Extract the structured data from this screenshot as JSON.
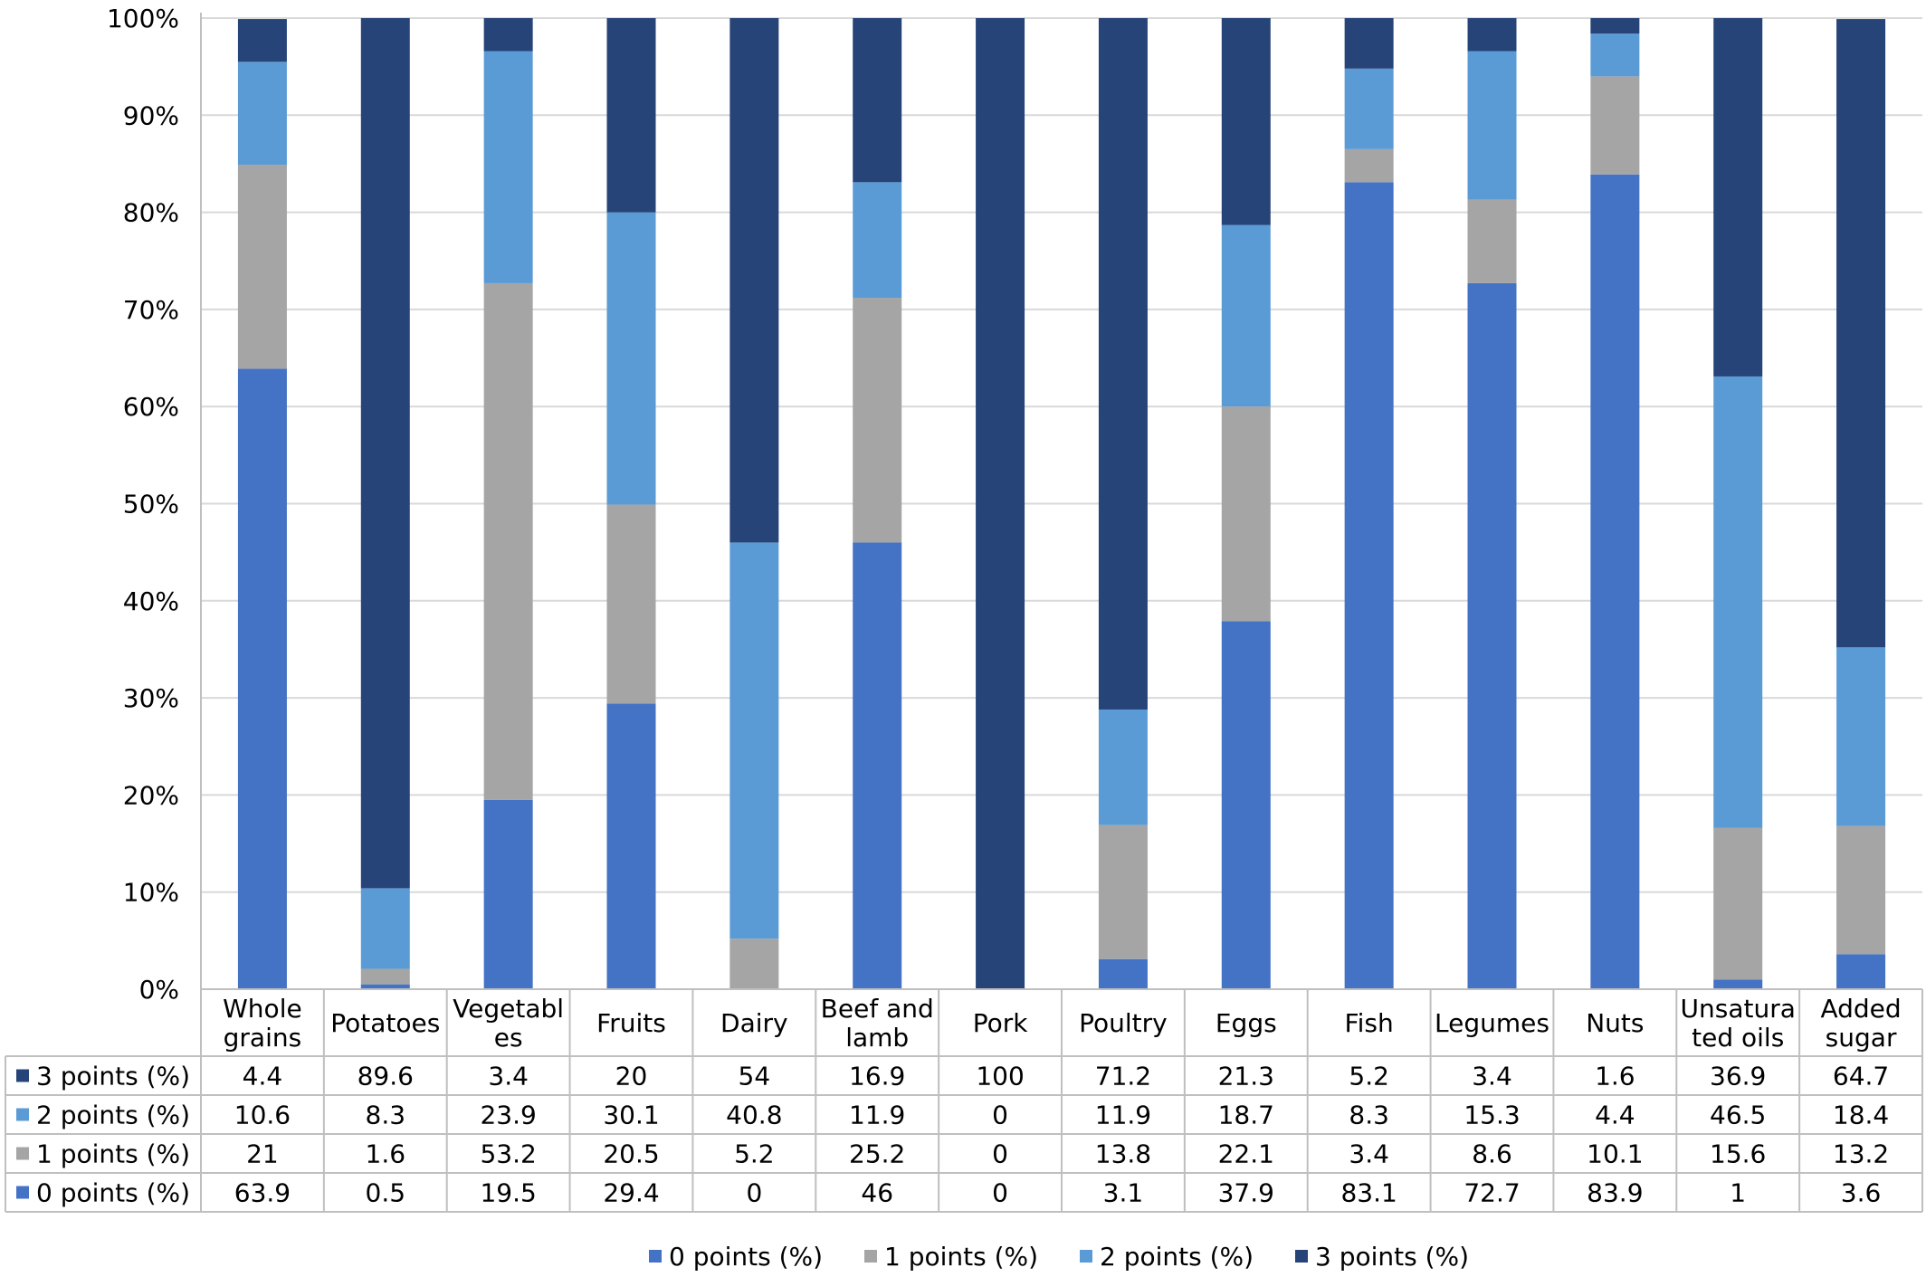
{
  "chart_data": {
    "type": "bar",
    "stacked": true,
    "percent": true,
    "title": "",
    "xlabel": "",
    "ylabel": "",
    "ylim": [
      0,
      100
    ],
    "yticks": [
      "0%",
      "10%",
      "20%",
      "30%",
      "40%",
      "50%",
      "60%",
      "70%",
      "80%",
      "90%",
      "100%"
    ],
    "grid": true,
    "legend_position": "bottom",
    "categories": [
      [
        "Whole",
        "grains"
      ],
      [
        "Potatoes"
      ],
      [
        "Vegetabl",
        "es"
      ],
      [
        "Fruits"
      ],
      [
        "Dairy"
      ],
      [
        "Beef and",
        "lamb"
      ],
      [
        "Pork"
      ],
      [
        "Poultry"
      ],
      [
        "Eggs"
      ],
      [
        "Fish"
      ],
      [
        "Legumes"
      ],
      [
        "Nuts"
      ],
      [
        "Unsatura",
        "ted oils"
      ],
      [
        "Added",
        "sugar"
      ]
    ],
    "series": [
      {
        "name": "0 points (%)",
        "color": "#4472C4",
        "values": [
          63.9,
          0.5,
          19.5,
          29.4,
          0,
          46,
          0,
          3.1,
          37.9,
          83.1,
          72.7,
          83.9,
          1,
          3.6
        ]
      },
      {
        "name": "1 points (%)",
        "color": "#A5A5A5",
        "values": [
          21,
          1.6,
          53.2,
          20.5,
          5.2,
          25.2,
          0,
          13.8,
          22.1,
          3.4,
          8.6,
          10.1,
          15.6,
          13.2
        ]
      },
      {
        "name": "2 points (%)",
        "color": "#5B9BD5",
        "values": [
          10.6,
          8.3,
          23.9,
          30.1,
          40.8,
          11.9,
          0,
          11.9,
          18.7,
          8.3,
          15.3,
          4.4,
          46.5,
          18.4
        ]
      },
      {
        "name": "3 points (%)",
        "color": "#264478",
        "values": [
          4.4,
          89.6,
          3.4,
          20,
          54,
          16.9,
          100,
          71.2,
          21.3,
          5.2,
          3.4,
          1.6,
          36.9,
          64.7
        ]
      }
    ],
    "table_row_order": [
      3,
      2,
      1,
      0
    ]
  }
}
